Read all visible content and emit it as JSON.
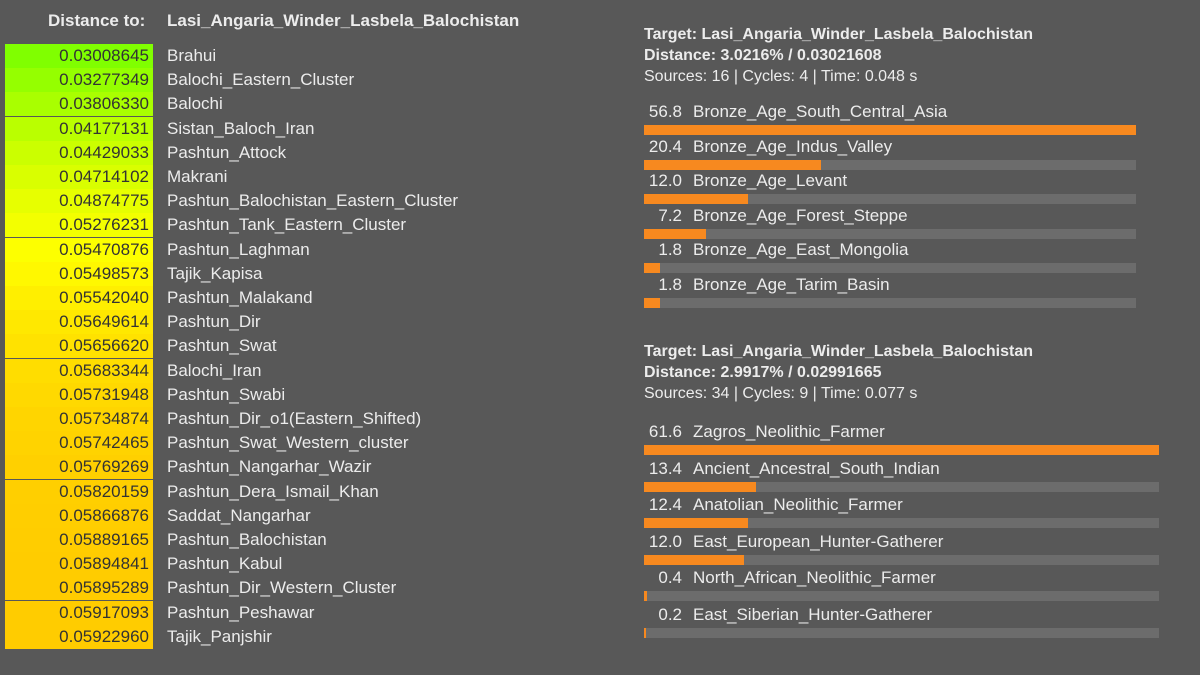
{
  "distance_table": {
    "header_label": "Distance to:",
    "target": "Lasi_Angaria_Winder_Lasbela_Balochistan",
    "rows": [
      [
        "0.03008645",
        "Brahui"
      ],
      [
        "0.03277349",
        "Balochi_Eastern_Cluster"
      ],
      [
        "0.03806330",
        "Balochi"
      ],
      [
        "0.04177131",
        "Sistan_Baloch_Iran"
      ],
      [
        "0.04429033",
        "Pashtun_Attock"
      ],
      [
        "0.04714102",
        "Makrani"
      ],
      [
        "0.04874775",
        "Pashtun_Balochistan_Eastern_Cluster"
      ],
      [
        "0.05276231",
        "Pashtun_Tank_Eastern_Cluster"
      ],
      [
        "0.05470876",
        "Pashtun_Laghman"
      ],
      [
        "0.05498573",
        "Tajik_Kapisa"
      ],
      [
        "0.05542040",
        "Pashtun_Malakand"
      ],
      [
        "0.05649614",
        "Pashtun_Dir"
      ],
      [
        "0.05656620",
        "Pashtun_Swat"
      ],
      [
        "0.05683344",
        "Balochi_Iran"
      ],
      [
        "0.05731948",
        "Pashtun_Swabi"
      ],
      [
        "0.05734874",
        "Pashtun_Dir_o1(Eastern_Shifted)"
      ],
      [
        "0.05742465",
        "Pashtun_Swat_Western_cluster"
      ],
      [
        "0.05769269",
        "Pashtun_Nangarhar_Wazir"
      ],
      [
        "0.05820159",
        "Pashtun_Dera_Ismail_Khan"
      ],
      [
        "0.05866876",
        "Saddat_Nangarhar"
      ],
      [
        "0.05889165",
        "Pashtun_Balochistan"
      ],
      [
        "0.05894841",
        "Pashtun_Kabul"
      ],
      [
        "0.05895289",
        "Pashtun_Dir_Western_Cluster"
      ],
      [
        "0.05917093",
        "Pashtun_Peshawar"
      ],
      [
        "0.05922960",
        "Tajik_Panjshir"
      ]
    ]
  },
  "models": [
    {
      "target_line": "Target: Lasi_Angaria_Winder_Lasbela_Balochistan",
      "distance_line": "Distance: 3.0216% / 0.03021608",
      "stats_line": "Sources: 16 | Cycles: 4 | Time: 0.048 s",
      "items": [
        {
          "value": 56.8,
          "label": "56.8",
          "name": "Bronze_Age_South_Central_Asia"
        },
        {
          "value": 20.4,
          "label": "20.4",
          "name": "Bronze_Age_Indus_Valley"
        },
        {
          "value": 12.0,
          "label": "12.0",
          "name": "Bronze_Age_Levant"
        },
        {
          "value": 7.2,
          "label": "7.2",
          "name": "Bronze_Age_Forest_Steppe"
        },
        {
          "value": 1.8,
          "label": "1.8",
          "name": "Bronze_Age_East_Mongolia"
        },
        {
          "value": 1.8,
          "label": "1.8",
          "name": "Bronze_Age_Tarim_Basin"
        }
      ]
    },
    {
      "target_line": "Target: Lasi_Angaria_Winder_Lasbela_Balochistan",
      "distance_line": "Distance: 2.9917% / 0.02991665",
      "stats_line": "Sources: 34 | Cycles: 9 | Time: 0.077 s",
      "items": [
        {
          "value": 61.6,
          "label": "61.6",
          "name": "Zagros_Neolithic_Farmer"
        },
        {
          "value": 13.4,
          "label": "13.4",
          "name": "Ancient_Ancestral_South_Indian"
        },
        {
          "value": 12.4,
          "label": "12.4",
          "name": "Anatolian_Neolithic_Farmer"
        },
        {
          "value": 12.0,
          "label": "12.0",
          "name": "East_European_Hunter-Gatherer"
        },
        {
          "value": 0.4,
          "label": "0.4",
          "name": "North_African_Neolithic_Farmer"
        },
        {
          "value": 0.2,
          "label": "0.2",
          "name": "East_Siberian_Hunter-Gatherer"
        }
      ]
    }
  ]
}
